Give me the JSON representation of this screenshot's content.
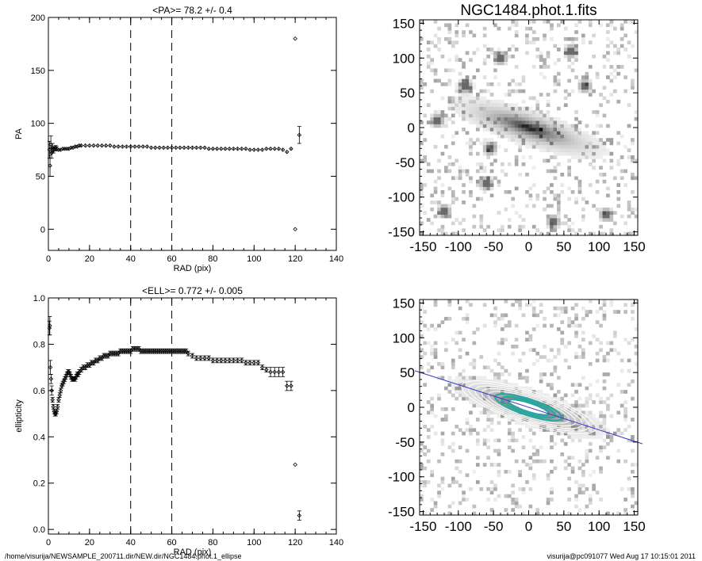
{
  "chart_data": [
    {
      "type": "scatter",
      "name": "pa-profile",
      "title": "<PA>=  78.2 +/-   0.4",
      "xlabel": "RAD (pix)",
      "ylabel": "PA",
      "xlim": [
        0,
        140
      ],
      "ylim": [
        -20,
        200
      ],
      "xticks": [
        0,
        20,
        40,
        60,
        80,
        100,
        120,
        140
      ],
      "yticks": [
        0,
        50,
        100,
        150,
        200
      ],
      "vlines": [
        40,
        60
      ],
      "x": [
        0.5,
        0.8,
        1.2,
        1.6,
        2.0,
        2.5,
        3.0,
        3.5,
        4.0,
        5.0,
        6.0,
        7.0,
        8.0,
        9.0,
        10.0,
        11.0,
        12.0,
        13.0,
        14.0,
        15.0,
        16.0,
        18.0,
        20.0,
        22.0,
        24.0,
        26.0,
        28.0,
        30.0,
        32.0,
        34.0,
        36.0,
        38.0,
        40.0,
        42.0,
        44.0,
        46.0,
        48.0,
        50.0,
        52.0,
        54.0,
        56.0,
        58.0,
        60.0,
        62.0,
        64.0,
        66.0,
        68.0,
        70.0,
        72.0,
        74.0,
        76.0,
        78.0,
        80.0,
        82.0,
        84.0,
        86.0,
        88.0,
        90.0,
        92.0,
        94.0,
        96.0,
        98.0,
        100.0,
        102.0,
        104.0,
        106.0,
        108.0,
        110.0,
        112.0,
        114.0,
        116.0,
        118.0,
        120.0,
        120.0,
        122.0
      ],
      "y": [
        75,
        60,
        80,
        72,
        77,
        75,
        76,
        77,
        76,
        75,
        75,
        76,
        76,
        76,
        76,
        77,
        77,
        78,
        78,
        79,
        79,
        79,
        79,
        79,
        79,
        79,
        79,
        79,
        78,
        78,
        78,
        78,
        78,
        78,
        78,
        78,
        78,
        77,
        77,
        77,
        77,
        77,
        77,
        77,
        77,
        77,
        77,
        77,
        77,
        77,
        77,
        76,
        76,
        76,
        76,
        76,
        76,
        76,
        76,
        76,
        76,
        75,
        75,
        75,
        75,
        76,
        76,
        76,
        76,
        75,
        73,
        76,
        180,
        0,
        89
      ],
      "yerr": [
        8,
        10,
        8,
        5,
        4,
        3,
        2,
        2,
        2,
        1,
        1,
        1,
        1,
        1,
        1,
        1,
        1,
        1,
        1,
        1,
        1,
        1,
        1,
        1,
        1,
        1,
        1,
        1,
        1,
        1,
        1,
        1,
        1,
        1,
        1,
        1,
        1,
        1,
        1,
        1,
        1,
        1,
        1,
        1,
        1,
        1,
        1,
        1,
        1,
        1,
        1,
        1,
        1,
        1,
        1,
        1,
        1,
        1,
        1,
        1,
        1,
        1,
        1,
        1,
        1,
        1,
        1,
        1,
        1,
        1,
        1,
        1,
        0,
        0,
        8
      ]
    },
    {
      "type": "scatter",
      "name": "ellipticity-profile",
      "title": "<ELL>= 0.772 +/-  0.005",
      "xlabel": "RAD (pix)",
      "ylabel": "ellipticity",
      "xlim": [
        0,
        140
      ],
      "ylim": [
        -0.02,
        1.0
      ],
      "xticks": [
        0,
        20,
        40,
        60,
        80,
        100,
        120,
        140
      ],
      "yticks": [
        0.0,
        0.2,
        0.4,
        0.6,
        0.8,
        1.0
      ],
      "ytick_labels": [
        "0.0",
        "0.2",
        "0.4",
        "0.6",
        "0.8",
        "1.0"
      ],
      "vlines": [
        40,
        60
      ],
      "x": [
        0.5,
        0.7,
        1.0,
        1.3,
        1.6,
        2.0,
        2.4,
        2.8,
        3.2,
        3.6,
        4.0,
        4.5,
        5.0,
        5.5,
        6.0,
        6.5,
        7.0,
        7.5,
        8.0,
        8.5,
        9.0,
        9.5,
        10.0,
        10.5,
        11.0,
        11.5,
        12.0,
        12.5,
        13.0,
        13.5,
        14.0,
        14.5,
        15.0,
        16.0,
        17.0,
        18.0,
        19.0,
        20.0,
        21.0,
        22.0,
        23.0,
        24.0,
        25.0,
        26.0,
        27.0,
        28.0,
        29.0,
        30.0,
        31.0,
        32.0,
        33.0,
        34.0,
        35.0,
        36.0,
        37.0,
        38.0,
        39.0,
        40.0,
        41.0,
        42.0,
        43.0,
        44.0,
        45.0,
        46.0,
        47.0,
        48.0,
        49.0,
        50.0,
        51.0,
        52.0,
        53.0,
        54.0,
        55.0,
        56.0,
        57.0,
        58.0,
        59.0,
        60.0,
        61.0,
        62.0,
        63.0,
        64.0,
        65.0,
        66.0,
        67.0,
        68.0,
        70.0,
        72.0,
        74.0,
        76.0,
        78.0,
        80.0,
        82.0,
        84.0,
        86.0,
        88.0,
        90.0,
        92.0,
        94.0,
        96.0,
        98.0,
        100.0,
        102.0,
        104.0,
        106.0,
        108.0,
        110.0,
        112.0,
        114.0,
        116.0,
        118.0,
        120.0,
        122.0
      ],
      "y": [
        0.87,
        0.88,
        0.7,
        0.65,
        0.6,
        0.56,
        0.53,
        0.51,
        0.5,
        0.5,
        0.51,
        0.53,
        0.56,
        0.58,
        0.6,
        0.62,
        0.63,
        0.64,
        0.65,
        0.66,
        0.67,
        0.68,
        0.68,
        0.67,
        0.66,
        0.65,
        0.65,
        0.65,
        0.65,
        0.66,
        0.67,
        0.67,
        0.68,
        0.69,
        0.7,
        0.7,
        0.71,
        0.71,
        0.72,
        0.72,
        0.73,
        0.73,
        0.74,
        0.74,
        0.75,
        0.75,
        0.75,
        0.76,
        0.76,
        0.76,
        0.76,
        0.76,
        0.77,
        0.77,
        0.77,
        0.77,
        0.77,
        0.77,
        0.78,
        0.78,
        0.78,
        0.78,
        0.77,
        0.77,
        0.77,
        0.77,
        0.77,
        0.77,
        0.77,
        0.77,
        0.77,
        0.77,
        0.77,
        0.77,
        0.77,
        0.77,
        0.77,
        0.77,
        0.77,
        0.77,
        0.77,
        0.77,
        0.77,
        0.77,
        0.77,
        0.76,
        0.75,
        0.74,
        0.74,
        0.74,
        0.74,
        0.73,
        0.73,
        0.73,
        0.73,
        0.73,
        0.73,
        0.73,
        0.73,
        0.72,
        0.72,
        0.72,
        0.72,
        0.7,
        0.69,
        0.68,
        0.68,
        0.68,
        0.68,
        0.62,
        0.62,
        0.28,
        0.06
      ],
      "yerr": [
        0.03,
        0.04,
        0.03,
        0.02,
        0.02,
        0.01,
        0.01,
        0.01,
        0.01,
        0.01,
        0.01,
        0.01,
        0.01,
        0.01,
        0.01,
        0.01,
        0.01,
        0.01,
        0.01,
        0.01,
        0.01,
        0.01,
        0.01,
        0.01,
        0.01,
        0.01,
        0.01,
        0.01,
        0.01,
        0.01,
        0.01,
        0.01,
        0.01,
        0.01,
        0.01,
        0.01,
        0.01,
        0.01,
        0.01,
        0.01,
        0.01,
        0.01,
        0.01,
        0.01,
        0.01,
        0.01,
        0.01,
        0.01,
        0.01,
        0.01,
        0.01,
        0.01,
        0.01,
        0.01,
        0.01,
        0.01,
        0.01,
        0.01,
        0.01,
        0.01,
        0.01,
        0.01,
        0.01,
        0.01,
        0.01,
        0.01,
        0.01,
        0.01,
        0.01,
        0.01,
        0.01,
        0.01,
        0.01,
        0.01,
        0.01,
        0.01,
        0.01,
        0.01,
        0.01,
        0.01,
        0.01,
        0.01,
        0.01,
        0.01,
        0.01,
        0.01,
        0.01,
        0.01,
        0.01,
        0.01,
        0.01,
        0.01,
        0.01,
        0.01,
        0.01,
        0.01,
        0.01,
        0.01,
        0.01,
        0.01,
        0.01,
        0.01,
        0.01,
        0.01,
        0.01,
        0.02,
        0.02,
        0.02,
        0.02,
        0.02,
        0.02,
        0.0,
        0.02
      ]
    },
    {
      "type": "heatmap",
      "name": "galaxy-image",
      "title": "NGC1484.phot.1.fits",
      "xlim": [
        -155,
        155
      ],
      "ylim": [
        -155,
        155
      ],
      "xticks": [
        -150,
        -100,
        -50,
        0,
        50,
        100,
        150
      ],
      "yticks": [
        -150,
        -100,
        -50,
        0,
        50,
        100,
        150
      ],
      "galaxy": {
        "center": [
          0,
          0
        ],
        "position_angle_deg": 78.2,
        "ellipticity": 0.772,
        "major_axis": 110
      },
      "stars": [
        [
          -90,
          60
        ],
        [
          -60,
          -80
        ],
        [
          -40,
          100
        ],
        [
          60,
          110
        ],
        [
          110,
          -125
        ],
        [
          -120,
          -120
        ],
        [
          35,
          -135
        ],
        [
          -55,
          -30
        ],
        [
          80,
          60
        ],
        [
          -130,
          10
        ]
      ]
    },
    {
      "type": "heatmap",
      "name": "ellipse-fit-image",
      "title": "",
      "xlim": [
        -155,
        155
      ],
      "ylim": [
        -155,
        155
      ],
      "xticks": [
        -150,
        -100,
        -50,
        0,
        50,
        100,
        150
      ],
      "yticks": [
        -150,
        -100,
        -50,
        0,
        50,
        100,
        150
      ],
      "galaxy": {
        "center": [
          0,
          0
        ],
        "position_angle_deg": 78.2,
        "ellipticity": 0.772,
        "major_axis": 110
      },
      "major_axis_line": true,
      "isophotes": [
        12,
        20,
        30,
        40,
        50,
        60,
        70,
        80,
        90,
        100
      ]
    }
  ],
  "footer": {
    "left": "/home/visurija/NEWSAMPLE_200711.dir/NEW.dir/NGC1484.phot.1_ellipse",
    "right": "visurija@pc091077  Wed Aug 17 10:15:01 2011"
  }
}
